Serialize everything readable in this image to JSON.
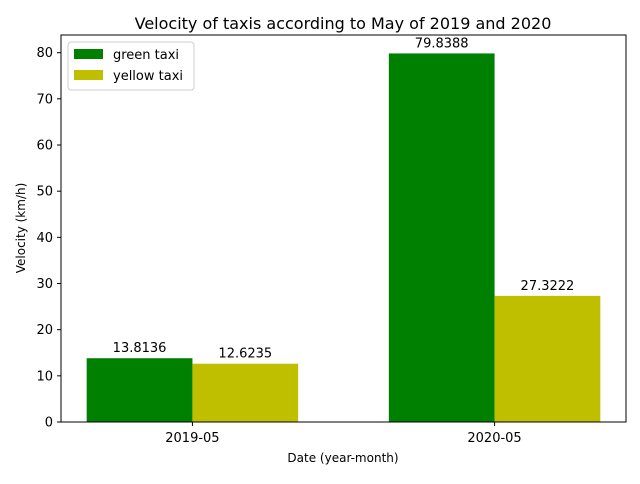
{
  "chart_data": {
    "type": "bar",
    "title": "Velocity of taxis according to May of 2019 and 2020",
    "xlabel": "Date (year-month)",
    "ylabel": "Velocity (km/h)",
    "categories": [
      "2019-05",
      "2020-05"
    ],
    "series": [
      {
        "name": "green taxi",
        "color": "#008000",
        "values": [
          13.8136,
          79.8388
        ],
        "labels": [
          "13.8136",
          "79.8388"
        ]
      },
      {
        "name": "yellow taxi",
        "color": "#bfbf00",
        "values": [
          12.6235,
          27.3222
        ],
        "labels": [
          "12.6235",
          "27.3222"
        ]
      }
    ],
    "ylim": [
      0,
      83.8307
    ],
    "yticks": [
      0,
      10,
      20,
      30,
      40,
      50,
      60,
      70,
      80
    ],
    "grid": false,
    "legend": "top-left"
  }
}
